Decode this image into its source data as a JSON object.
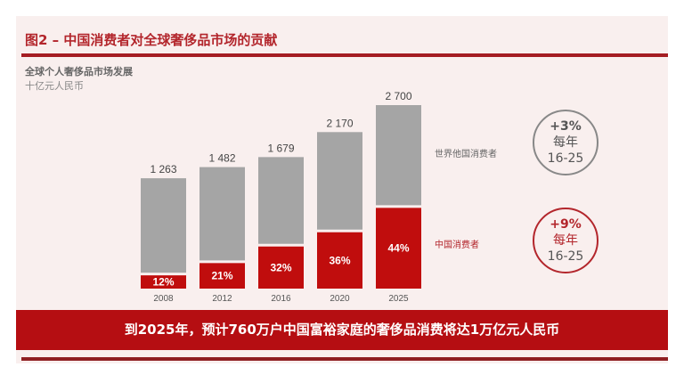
{
  "header": {
    "title": "图2 – 中国消费者对全球奢侈品市场的贡献"
  },
  "chart_data": {
    "type": "bar",
    "title": "全球个人奢侈品市场发展",
    "subtitle": "十亿元人民币",
    "categories": [
      "2008",
      "2012",
      "2016",
      "2020",
      "2025"
    ],
    "totals": [
      1263,
      1482,
      1679,
      2170,
      2700
    ],
    "total_labels": [
      "1 263",
      "1 482",
      "1 679",
      "2 170",
      "2 700"
    ],
    "china_share_pct": [
      12,
      21,
      32,
      36,
      44
    ],
    "share_labels": [
      "12%",
      "21%",
      "32%",
      "36%",
      "44%"
    ],
    "series": [
      {
        "name": "中国消费者",
        "color": "#c00d0d"
      },
      {
        "name": "世界他国消费者",
        "color": "#a5a5a5"
      }
    ],
    "growth": [
      {
        "series": "世界他国消费者",
        "rate": "+3%",
        "per": "每年",
        "period": "16-25",
        "color": "#888888"
      },
      {
        "series": "中国消费者",
        "rate": "+9%",
        "per": "每年",
        "period": "16-25",
        "color": "#b3262c"
      }
    ]
  },
  "banner": {
    "text": "到2025年，预计760万户中国富裕家庭的奢侈品消费将达1万亿元人民币"
  }
}
